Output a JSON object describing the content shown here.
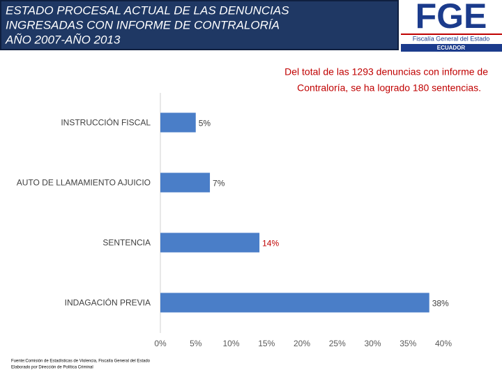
{
  "header": {
    "logo": {
      "mark": "FGE",
      "name": "Fiscalía General del Estado",
      "country": "ECUADOR"
    }
  },
  "chart_data": {
    "type": "barh",
    "title": [
      "ESTADO PROCESAL ACTUAL DE LAS DENUNCIAS",
      "INGRESADAS CON  INFORME DE CONTRALORÍA",
      "AÑO 2007-AÑO 2013"
    ],
    "annotation": [
      "Del total de las 1293 denuncias con informe de",
      "Contraloría, se ha logrado 180 sentencias."
    ],
    "categories": [
      "INSTRUCCIÓN FISCAL",
      "AUTO DE LLAMAMIENTO AJUICIO",
      "SENTENCIA",
      "INDAGACIÓN PREVIA"
    ],
    "values": [
      5,
      7,
      14,
      38
    ],
    "value_labels": [
      "5%",
      "7%",
      "14%",
      "38%"
    ],
    "value_label_colors": [
      "#404040",
      "#404040",
      "#c00000",
      "#404040"
    ],
    "color": "#4a7ec8",
    "xlim": [
      0,
      40
    ],
    "xticks": [
      {
        "value": 0,
        "label": "0%"
      },
      {
        "value": 5,
        "label": "5%"
      },
      {
        "value": 10,
        "label": "10%"
      },
      {
        "value": 15,
        "label": "15%"
      },
      {
        "value": 20,
        "label": "20%"
      },
      {
        "value": 25,
        "label": "25%"
      },
      {
        "value": 30,
        "label": "30%"
      },
      {
        "value": 35,
        "label": "35%"
      },
      {
        "value": 40,
        "label": "40%"
      }
    ],
    "grid": false,
    "source": [
      "Fuente:Comisión de Estadísticas de Violencia, Fiscalía General del Estado",
      "Elaborado por Dirección de Política Criminal"
    ]
  }
}
